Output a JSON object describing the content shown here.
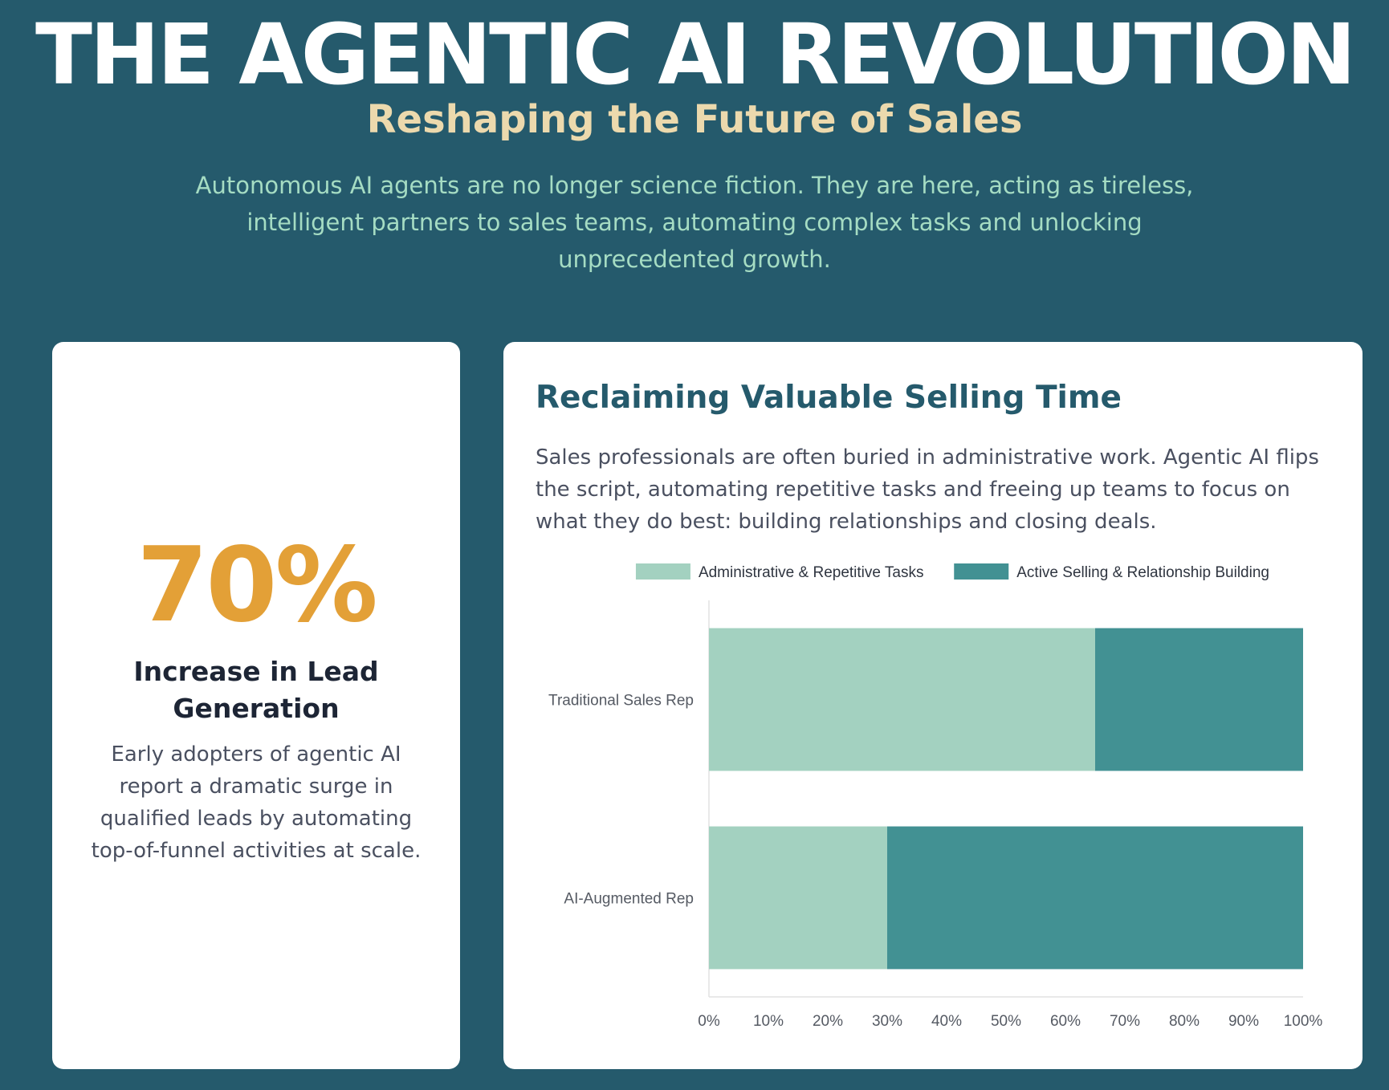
{
  "hero": {
    "title": "THE AGENTIC AI REVOLUTION",
    "subtitle": "Reshaping the Future of Sales",
    "description": "Autonomous AI agents are no longer science fiction. They are here, acting as tireless, intelligent partners to sales teams, automating complex tasks and unlocking unprecedented growth."
  },
  "stat_card": {
    "value": "70%",
    "label": "Increase in Lead Generation",
    "description": "Early adopters of agentic AI report a dramatic surge in qualified leads by automating top-of-funnel activities at scale."
  },
  "chart_card": {
    "title": "Reclaiming Valuable Selling Time",
    "description": "Sales professionals are often buried in administrative work. Agentic AI flips the script, automating repetitive tasks and freeing up teams to focus on what they do best: building relationships and closing deals."
  },
  "colors": {
    "background": "#255a6c",
    "accent_gold": "#e3a037",
    "admin_series": "#a3d1c0",
    "selling_series": "#429193"
  },
  "chart_data": {
    "type": "bar",
    "orientation": "horizontal",
    "stacked": true,
    "categories": [
      "Traditional Sales Rep",
      "AI-Augmented Rep"
    ],
    "series": [
      {
        "name": "Administrative & Repetitive Tasks",
        "values": [
          65,
          30
        ],
        "color": "#a3d1c0"
      },
      {
        "name": "Active Selling & Relationship Building",
        "values": [
          35,
          70
        ],
        "color": "#429193"
      }
    ],
    "xlim": [
      0,
      100
    ],
    "x_ticks": [
      "0%",
      "10%",
      "20%",
      "30%",
      "40%",
      "50%",
      "60%",
      "70%",
      "80%",
      "90%",
      "100%"
    ],
    "legend": "top-center",
    "grid": false
  }
}
